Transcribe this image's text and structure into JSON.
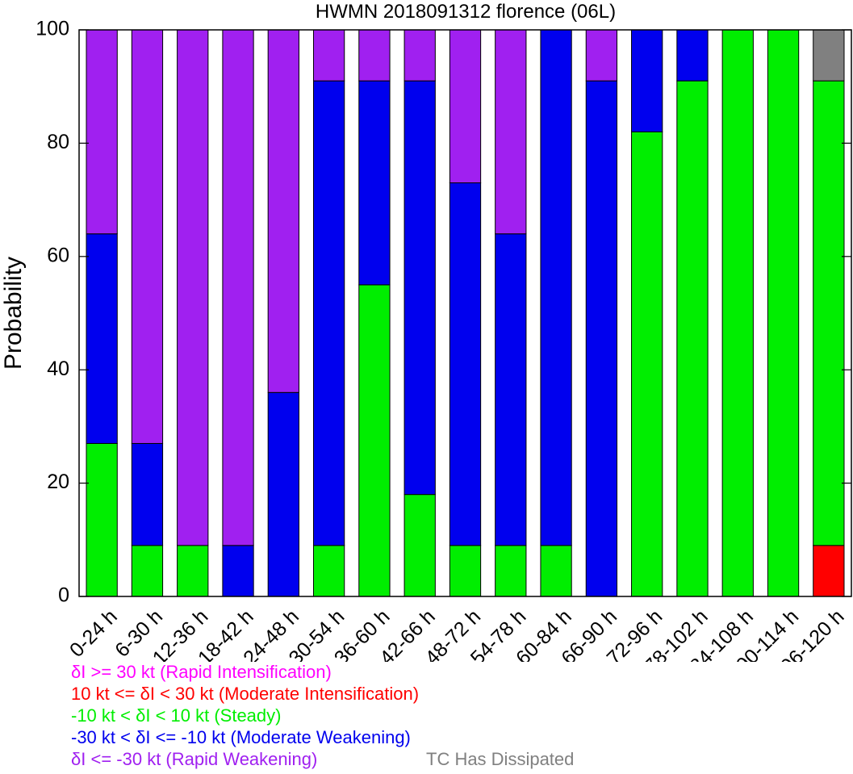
{
  "chart_data": {
    "type": "bar",
    "stacked": true,
    "title": "HWMN 2018091312 florence (06L)",
    "xlabel": "",
    "ylabel": "Probability",
    "ylim": [
      0,
      100
    ],
    "yticks": [
      "0",
      "20",
      "40",
      "60",
      "80",
      "100"
    ],
    "grid": false,
    "categories": [
      "0-24 h",
      "6-30 h",
      "12-36 h",
      "18-42 h",
      "24-48 h",
      "30-54 h",
      "36-60 h",
      "42-66 h",
      "48-72 h",
      "54-78 h",
      "60-84 h",
      "66-90 h",
      "72-96 h",
      "78-102 h",
      "84-108 h",
      "90-114 h",
      "96-120 h"
    ],
    "series": [
      {
        "key": "ri",
        "color": "#ff00ff",
        "values": [
          0,
          0,
          0,
          0,
          0,
          0,
          0,
          0,
          0,
          0,
          0,
          0,
          0,
          0,
          0,
          0,
          0
        ]
      },
      {
        "key": "mi",
        "color": "#ff0000",
        "values": [
          0,
          0,
          0,
          0,
          0,
          0,
          0,
          0,
          0,
          0,
          0,
          0,
          0,
          0,
          0,
          0,
          9
        ]
      },
      {
        "key": "steady",
        "color": "#00ee00",
        "values": [
          27,
          9,
          9,
          0,
          0,
          9,
          55,
          18,
          9,
          9,
          9,
          0,
          82,
          91,
          100,
          100,
          82
        ]
      },
      {
        "key": "mw",
        "color": "#0000ee",
        "values": [
          37,
          18,
          0,
          9,
          36,
          82,
          36,
          73,
          64,
          55,
          91,
          91,
          18,
          9,
          0,
          0,
          0
        ]
      },
      {
        "key": "rw",
        "color": "#a020f0",
        "values": [
          36,
          73,
          91,
          91,
          64,
          9,
          9,
          9,
          27,
          36,
          0,
          9,
          0,
          0,
          0,
          0,
          0
        ]
      },
      {
        "key": "dissipated",
        "color": "#808080",
        "values": [
          0,
          0,
          0,
          0,
          0,
          0,
          0,
          0,
          0,
          0,
          0,
          0,
          0,
          0,
          0,
          0,
          9
        ]
      }
    ]
  },
  "legend": {
    "ri": {
      "text": "δI >= 30 kt (Rapid Intensification)",
      "color": "#ff00ff"
    },
    "mi": {
      "text": "10 kt <= δI < 30 kt (Moderate Intensification)",
      "color": "#ff0000"
    },
    "steady": {
      "text": "-10 kt < δI < 10 kt (Steady)",
      "color": "#00ee00"
    },
    "mw": {
      "text": "-30 kt < δI <= -10 kt (Moderate Weakening)",
      "color": "#0000ee"
    },
    "rw": {
      "text": "δI <= -30 kt (Rapid Weakening)",
      "color": "#a020f0"
    },
    "dissipated": {
      "text": "TC Has Dissipated",
      "color": "#808080"
    }
  }
}
